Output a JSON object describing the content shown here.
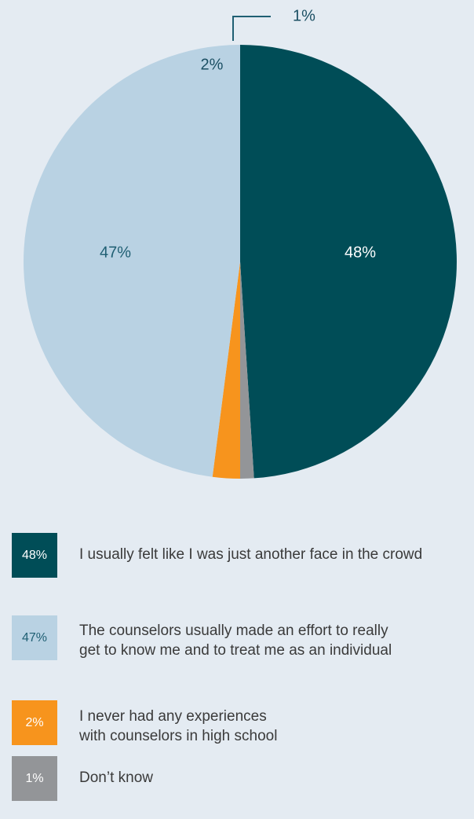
{
  "chart_data": {
    "type": "pie",
    "slices": [
      {
        "label": "I usually felt like I was just another face in the crowd",
        "value": 48,
        "value_label": "48%",
        "color": "#004d57"
      },
      {
        "label": "Don’t know",
        "value": 1,
        "value_label": "1%",
        "color": "#939598"
      },
      {
        "label": "I never had any experiences\nwith counselors in high school",
        "value": 2,
        "value_label": "2%",
        "color": "#f7941d"
      },
      {
        "label": "The counselors usually made an effort to really\nget to know me and to treat me as an individual",
        "value": 47,
        "value_label": "47%",
        "color": "#b9d2e3"
      }
    ],
    "legend_placement": "bottom"
  },
  "legend": [
    {
      "pct": "48%",
      "text": "I usually felt like I was just another face in the crowd",
      "swatch": "#004d57",
      "pct_color": "#ffffff"
    },
    {
      "pct": "47%",
      "text": "The counselors usually made an effort to really\nget to know me and to treat me as an individual",
      "swatch": "#b9d2e3",
      "pct_color": "#1f5f73"
    },
    {
      "pct": "2%",
      "text": "I never had any experiences\nwith counselors in high school",
      "swatch": "#f7941d",
      "pct_color": "#ffffff"
    },
    {
      "pct": "1%",
      "text": "Don’t know",
      "swatch": "#939598",
      "pct_color": "#ffffff"
    }
  ]
}
